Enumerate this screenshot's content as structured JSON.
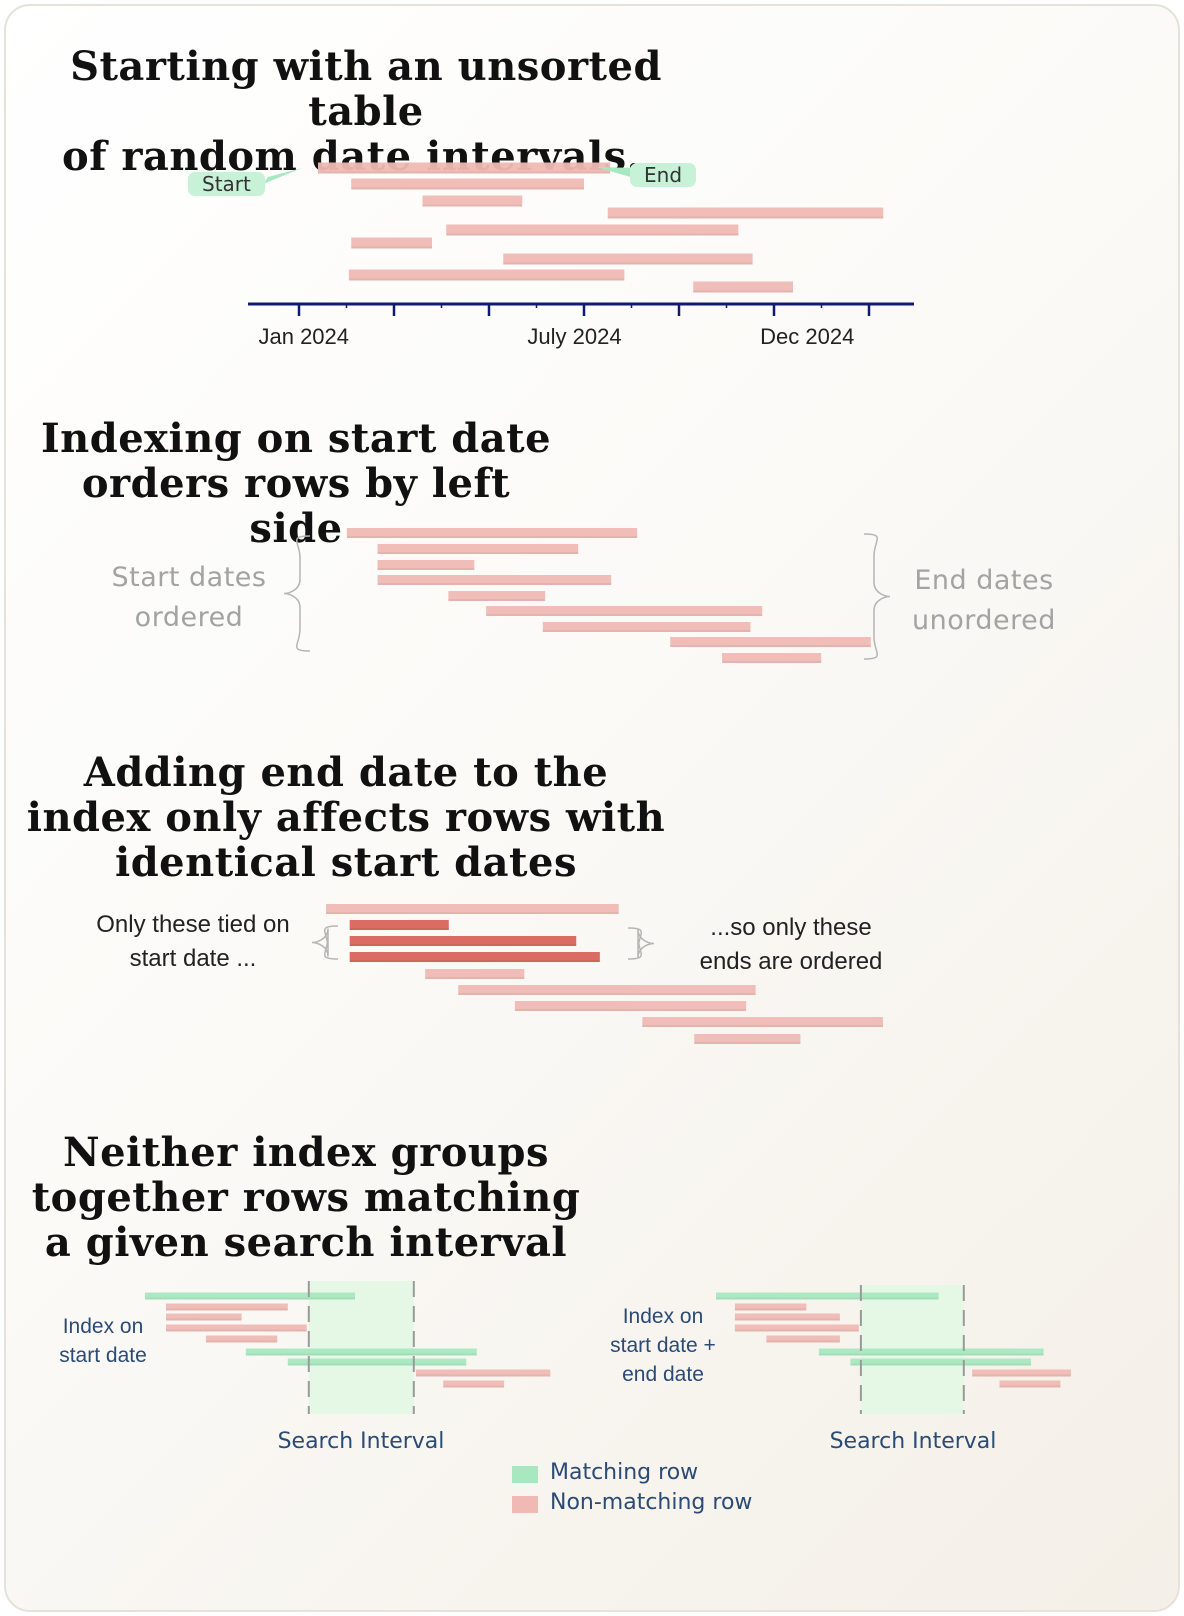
{
  "section1": {
    "title_lines": [
      "Starting with an unsorted table",
      "of random date intervals..."
    ],
    "callout_start": "Start",
    "callout_end": "End",
    "axis": {
      "labels": [
        "Jan 2024",
        "July 2024",
        "Dec 2024"
      ]
    },
    "intervals": [
      {
        "start": 0.4,
        "end": 6.55
      },
      {
        "start": 1.1,
        "end": 6.0
      },
      {
        "start": 2.6,
        "end": 4.7
      },
      {
        "start": 6.5,
        "end": 12.3
      },
      {
        "start": 1.1,
        "end": 2.8
      },
      {
        "start": 3.1,
        "end": 9.25
      },
      {
        "start": 4.3,
        "end": 9.55
      },
      {
        "start": 1.05,
        "end": 6.85
      },
      {
        "start": 8.3,
        "end": 10.4
      }
    ]
  },
  "section2": {
    "title_lines": [
      "Indexing on start date",
      "orders rows by left side"
    ],
    "left_label_lines": [
      "Start dates",
      "ordered"
    ],
    "right_label_lines": [
      "End dates",
      "unordered"
    ],
    "intervals": [
      {
        "start": 0.4,
        "end": 6.55
      },
      {
        "start": 1.05,
        "end": 5.3
      },
      {
        "start": 1.05,
        "end": 3.1
      },
      {
        "start": 1.05,
        "end": 6.0
      },
      {
        "start": 2.55,
        "end": 4.6
      },
      {
        "start": 3.35,
        "end": 9.2
      },
      {
        "start": 4.55,
        "end": 8.95
      },
      {
        "start": 7.25,
        "end": 11.5
      },
      {
        "start": 8.35,
        "end": 10.45
      }
    ]
  },
  "section3": {
    "title_lines": [
      "Adding end date to the",
      "index only affects rows with",
      "identical start dates"
    ],
    "left_label_lines": [
      "Only these tied on",
      "start date ..."
    ],
    "right_label_lines": [
      "...so only these",
      "ends  are ordered"
    ],
    "intervals": [
      {
        "start": 0.15,
        "end": 6.35,
        "tied": false
      },
      {
        "start": 0.65,
        "end": 2.75,
        "tied": true
      },
      {
        "start": 0.65,
        "end": 5.45,
        "tied": true
      },
      {
        "start": 0.65,
        "end": 5.95,
        "tied": true
      },
      {
        "start": 2.25,
        "end": 4.35,
        "tied": false
      },
      {
        "start": 2.95,
        "end": 9.25,
        "tied": false
      },
      {
        "start": 4.15,
        "end": 9.05,
        "tied": false
      },
      {
        "start": 6.85,
        "end": 11.95,
        "tied": false
      },
      {
        "start": 7.95,
        "end": 10.2,
        "tied": false
      }
    ]
  },
  "section4": {
    "title_lines": [
      "Neither index groups",
      "together rows matching",
      "a given search interval"
    ],
    "panels": [
      {
        "label_lines": [
          "Index on",
          "start date"
        ],
        "search_label": "Search Interval",
        "search_interval": {
          "start": 3.9,
          "end": 6.4
        },
        "intervals": [
          {
            "start": 0.0,
            "end": 5.0,
            "match": true
          },
          {
            "start": 0.5,
            "end": 3.4,
            "match": false
          },
          {
            "start": 0.5,
            "end": 2.3,
            "match": false
          },
          {
            "start": 0.5,
            "end": 3.85,
            "match": false
          },
          {
            "start": 1.45,
            "end": 3.15,
            "match": false
          },
          {
            "start": 2.4,
            "end": 7.9,
            "match": true
          },
          {
            "start": 3.4,
            "end": 7.65,
            "match": true
          },
          {
            "start": 6.45,
            "end": 9.65,
            "match": false
          },
          {
            "start": 7.1,
            "end": 8.55,
            "match": false
          }
        ]
      },
      {
        "label_lines": [
          "Index on",
          "start date +",
          "end date"
        ],
        "search_label": "Search Interval",
        "search_interval": {
          "start": 3.45,
          "end": 5.9
        },
        "intervals": [
          {
            "start": 0.0,
            "end": 5.3,
            "match": true
          },
          {
            "start": 0.45,
            "end": 2.15,
            "match": false
          },
          {
            "start": 0.45,
            "end": 2.95,
            "match": false
          },
          {
            "start": 0.45,
            "end": 3.4,
            "match": false
          },
          {
            "start": 1.2,
            "end": 2.95,
            "match": false
          },
          {
            "start": 2.45,
            "end": 7.8,
            "match": true
          },
          {
            "start": 3.2,
            "end": 7.5,
            "match": true
          },
          {
            "start": 6.1,
            "end": 8.45,
            "match": false
          },
          {
            "start": 6.75,
            "end": 8.2,
            "match": false
          }
        ]
      }
    ]
  },
  "legend": {
    "matching": "Matching row",
    "non_matching": "Non-matching row"
  },
  "colors": {
    "bar": "#f0b9b4",
    "bar_tied": "#d9645b",
    "match": "#a8e8c0",
    "match_bg": "#e5f8e6",
    "axis": "#101a70",
    "brace": "#b5b5b5"
  }
}
